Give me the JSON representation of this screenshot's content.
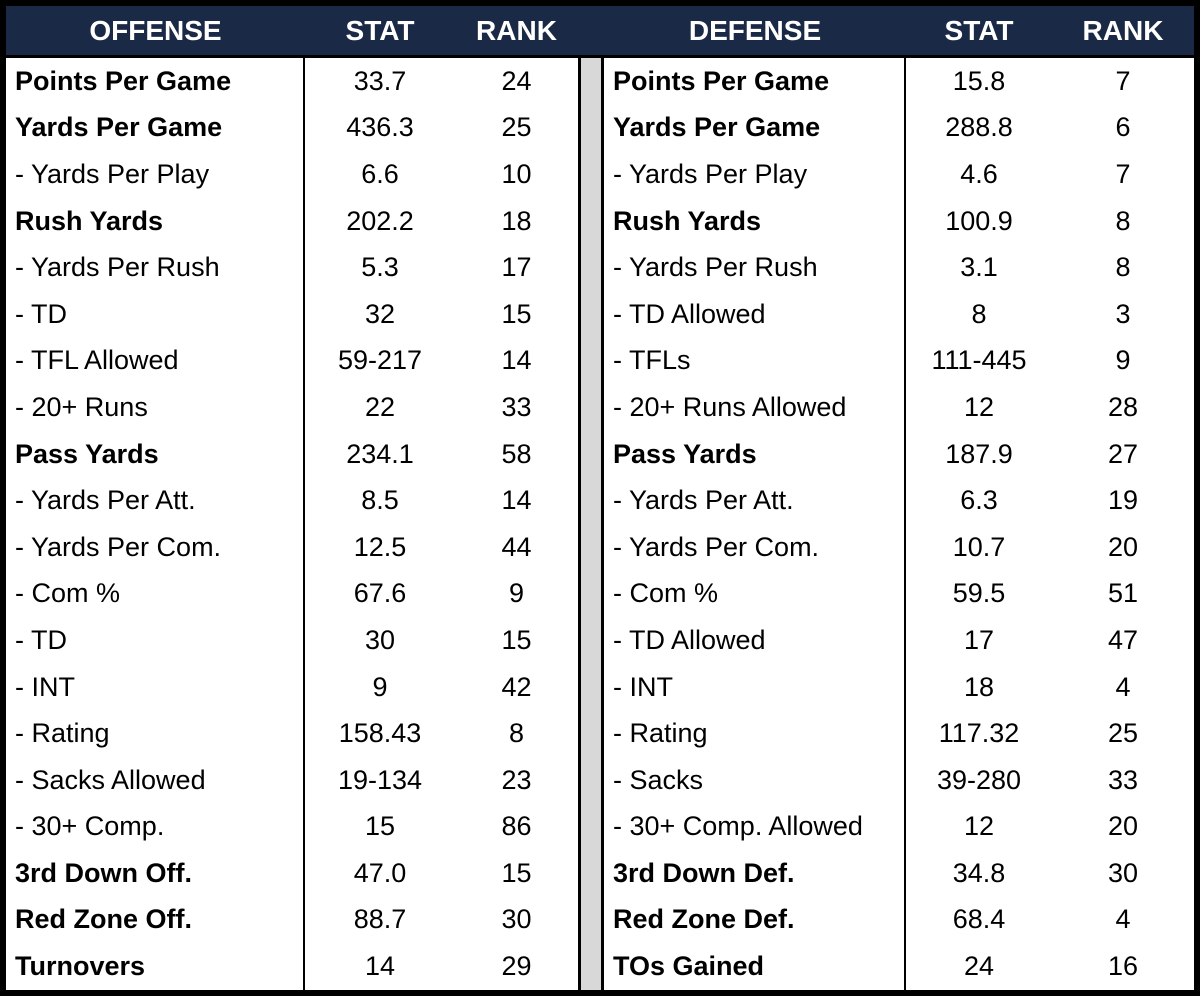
{
  "colors": {
    "header_bg": "#1a2946",
    "header_text": "#ffffff",
    "divider": "#d8d8d8",
    "border": "#000000",
    "body_bg": "#ffffff",
    "text": "#000000"
  },
  "chart_data": {
    "type": "table",
    "tables": [
      {
        "name": "OFFENSE",
        "columns": [
          "OFFENSE",
          "STAT",
          "RANK"
        ],
        "rows": [
          {
            "label": "Points Per Game",
            "stat": "33.7",
            "rank": "24",
            "bold": true
          },
          {
            "label": "Yards Per Game",
            "stat": "436.3",
            "rank": "25",
            "bold": true
          },
          {
            "label": "- Yards Per Play",
            "stat": "6.6",
            "rank": "10",
            "bold": false
          },
          {
            "label": "Rush Yards",
            "stat": "202.2",
            "rank": "18",
            "bold": true
          },
          {
            "label": "- Yards Per Rush",
            "stat": "5.3",
            "rank": "17",
            "bold": false
          },
          {
            "label": "- TD",
            "stat": "32",
            "rank": "15",
            "bold": false
          },
          {
            "label": "- TFL Allowed",
            "stat": "59-217",
            "rank": "14",
            "bold": false
          },
          {
            "label": "- 20+ Runs",
            "stat": "22",
            "rank": "33",
            "bold": false
          },
          {
            "label": "Pass Yards",
            "stat": "234.1",
            "rank": "58",
            "bold": true
          },
          {
            "label": "- Yards Per Att.",
            "stat": "8.5",
            "rank": "14",
            "bold": false
          },
          {
            "label": "- Yards Per Com.",
            "stat": "12.5",
            "rank": "44",
            "bold": false
          },
          {
            "label": "- Com %",
            "stat": "67.6",
            "rank": "9",
            "bold": false
          },
          {
            "label": "- TD",
            "stat": "30",
            "rank": "15",
            "bold": false
          },
          {
            "label": "- INT",
            "stat": "9",
            "rank": "42",
            "bold": false
          },
          {
            "label": "- Rating",
            "stat": "158.43",
            "rank": "8",
            "bold": false
          },
          {
            "label": "- Sacks Allowed",
            "stat": "19-134",
            "rank": "23",
            "bold": false
          },
          {
            "label": "- 30+ Comp.",
            "stat": "15",
            "rank": "86",
            "bold": false
          },
          {
            "label": "3rd Down Off.",
            "stat": "47.0",
            "rank": "15",
            "bold": true
          },
          {
            "label": "Red Zone Off.",
            "stat": "88.7",
            "rank": "30",
            "bold": true
          },
          {
            "label": "Turnovers",
            "stat": "14",
            "rank": "29",
            "bold": true
          }
        ]
      },
      {
        "name": "DEFENSE",
        "columns": [
          "DEFENSE",
          "STAT",
          "RANK"
        ],
        "rows": [
          {
            "label": "Points Per Game",
            "stat": "15.8",
            "rank": "7",
            "bold": true
          },
          {
            "label": "Yards Per Game",
            "stat": "288.8",
            "rank": "6",
            "bold": true
          },
          {
            "label": "- Yards Per Play",
            "stat": "4.6",
            "rank": "7",
            "bold": false
          },
          {
            "label": "Rush Yards",
            "stat": "100.9",
            "rank": "8",
            "bold": true
          },
          {
            "label": "- Yards Per Rush",
            "stat": "3.1",
            "rank": "8",
            "bold": false
          },
          {
            "label": "- TD Allowed",
            "stat": "8",
            "rank": "3",
            "bold": false
          },
          {
            "label": "- TFLs",
            "stat": "111-445",
            "rank": "9",
            "bold": false
          },
          {
            "label": "- 20+ Runs Allowed",
            "stat": "12",
            "rank": "28",
            "bold": false
          },
          {
            "label": "Pass Yards",
            "stat": "187.9",
            "rank": "27",
            "bold": true
          },
          {
            "label": "- Yards Per Att.",
            "stat": "6.3",
            "rank": "19",
            "bold": false
          },
          {
            "label": "- Yards Per Com.",
            "stat": "10.7",
            "rank": "20",
            "bold": false
          },
          {
            "label": "- Com %",
            "stat": "59.5",
            "rank": "51",
            "bold": false
          },
          {
            "label": "- TD Allowed",
            "stat": "17",
            "rank": "47",
            "bold": false
          },
          {
            "label": "- INT",
            "stat": "18",
            "rank": "4",
            "bold": false
          },
          {
            "label": "- Rating",
            "stat": "117.32",
            "rank": "25",
            "bold": false
          },
          {
            "label": "- Sacks",
            "stat": "39-280",
            "rank": "33",
            "bold": false
          },
          {
            "label": "- 30+ Comp. Allowed",
            "stat": "12",
            "rank": "20",
            "bold": false
          },
          {
            "label": "3rd Down Def.",
            "stat": "34.8",
            "rank": "30",
            "bold": true
          },
          {
            "label": "Red Zone Def.",
            "stat": "68.4",
            "rank": "4",
            "bold": true
          },
          {
            "label": "TOs Gained",
            "stat": "24",
            "rank": "16",
            "bold": true
          }
        ]
      }
    ]
  }
}
